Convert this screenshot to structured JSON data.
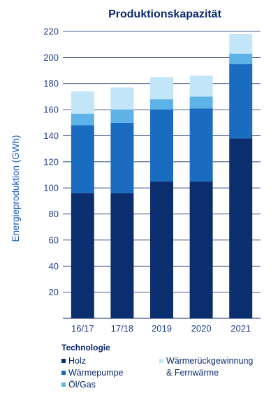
{
  "chart_data": {
    "type": "bar",
    "stacked": true,
    "title": "Produktionskapazität",
    "xlabel": "",
    "ylabel": "Energieproduktion (GWh)",
    "ylim": [
      0,
      220
    ],
    "yticks": [
      20,
      40,
      60,
      80,
      100,
      120,
      140,
      160,
      180,
      200,
      220
    ],
    "categories": [
      "16/17",
      "17/18",
      "2019",
      "2020",
      "2021"
    ],
    "series": [
      {
        "name": "Holz",
        "color": "#0b2e6f",
        "values": [
          96,
          96,
          105,
          105,
          138
        ]
      },
      {
        "name": "Wärmepumpe",
        "color": "#1a6cc0",
        "values": [
          52,
          54,
          55,
          56,
          57
        ]
      },
      {
        "name": "Öl/Gas",
        "color": "#5db2e8",
        "values": [
          9,
          10,
          8,
          9,
          8
        ]
      },
      {
        "name": "Wärmerückgewinnung & Fernwärme",
        "color": "#c2e5f8",
        "values": [
          17,
          17,
          17,
          16,
          15
        ]
      }
    ],
    "grid": "horizontal",
    "legend_title": "Technologie",
    "legend_position": "bottom"
  },
  "legend": {
    "title": "Technologie",
    "holz": "Holz",
    "waermepumpe": "Wärmepumpe",
    "oelgas": "Öl/Gas",
    "wrg_line1": "Wärmerückgewinnung",
    "wrg_line2": "& Fernwärme"
  }
}
